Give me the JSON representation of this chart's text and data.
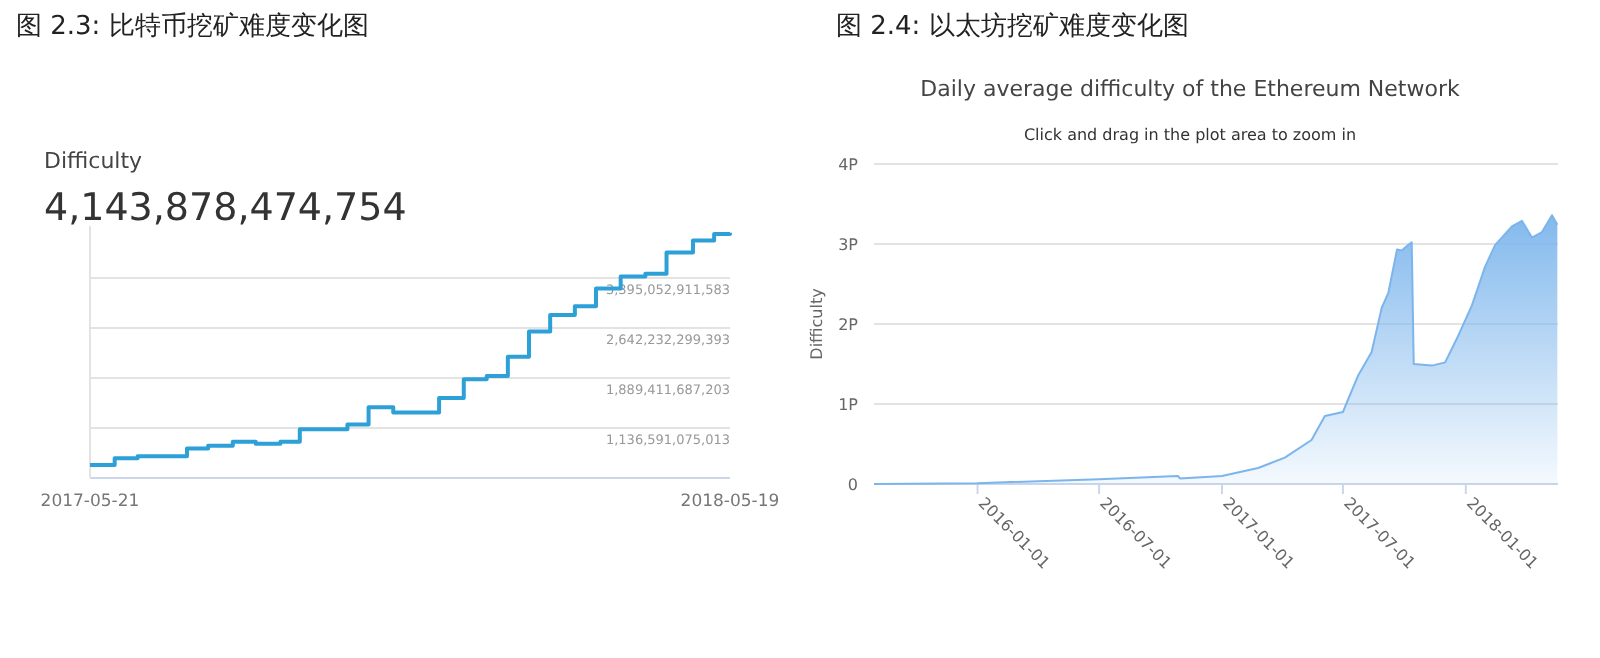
{
  "chart_data": [
    {
      "type": "step",
      "title": "图 2.3: 比特币挖矿难度变化图",
      "subtitle": "Difficulty",
      "annotations": [
        "4,143,878,474,754"
      ],
      "x": [
        "2017-05-21",
        "2017-06-04",
        "2017-06-17",
        "2017-07-15",
        "2017-07-27",
        "2017-08-10",
        "2017-08-23",
        "2017-09-06",
        "2017-09-17",
        "2017-10-14",
        "2017-10-26",
        "2017-11-09",
        "2017-12-05",
        "2017-12-19",
        "2018-01-01",
        "2018-01-13",
        "2018-01-25",
        "2018-02-06",
        "2018-02-20",
        "2018-03-04",
        "2018-03-18",
        "2018-04-01",
        "2018-04-13",
        "2018-04-28",
        "2018-05-10",
        "2018-05-19"
      ],
      "values": [
        580000000000,
        680000000000,
        710000000000,
        830000000000,
        870000000000,
        930000000000,
        900000000000,
        930000000000,
        1120000000000,
        1190000000000,
        1450000000000,
        1370000000000,
        1590000000000,
        1870000000000,
        1920000000000,
        2210000000000,
        2590000000000,
        2840000000000,
        2970000000000,
        3240000000000,
        3420000000000,
        3460000000000,
        3780000000000,
        3960000000000,
        4060000000000,
        4080000000000
      ],
      "color": "#2ea0d8",
      "xlim": [
        "2017-05-21",
        "2018-05-19"
      ],
      "xticks": [
        "2017-05-21",
        "2018-05-19"
      ],
      "ylim": [
        383770462823,
        4180000000000
      ],
      "yticks": [
        {
          "value": 1136591075013,
          "label": "1,136,591,075,013"
        },
        {
          "value": 1889411687203,
          "label": "1,889,411,687,203"
        },
        {
          "value": 2642232299393,
          "label": "2,642,232,299,393"
        },
        {
          "value": 3395052911583,
          "label": "3,395,052,911,583"
        }
      ],
      "grid": "y"
    },
    {
      "type": "area",
      "title": "图 2.4: 以太坊挖矿难度变化图",
      "subtitle": "Daily average difficulty of the Ethereum Network",
      "annotations": [
        "Click and drag in the plot area to zoom in"
      ],
      "ylabel": "Difficulty",
      "x": [
        "2015-07-30",
        "2016-01-01",
        "2016-07-01",
        "2016-10-27",
        "2016-10-30",
        "2017-01-01",
        "2017-02-24",
        "2017-04-05",
        "2017-05-15",
        "2017-06-04",
        "2017-07-01",
        "2017-07-24",
        "2017-08-13",
        "2017-08-28",
        "2017-09-07",
        "2017-09-20",
        "2017-09-27",
        "2017-10-07",
        "2017-10-12",
        "2017-10-15",
        "2017-11-11",
        "2017-12-01",
        "2017-12-21",
        "2018-01-10",
        "2018-01-30",
        "2018-02-14",
        "2018-03-11",
        "2018-03-26",
        "2018-04-10",
        "2018-04-25",
        "2018-05-10",
        "2018-05-18"
      ],
      "values": [
        0,
        0.01,
        0.06,
        0.1,
        0.07,
        0.1,
        0.2,
        0.33,
        0.55,
        0.85,
        0.9,
        1.36,
        1.65,
        2.2,
        2.39,
        2.93,
        2.92,
        2.99,
        3.02,
        1.5,
        1.48,
        1.52,
        1.86,
        2.23,
        2.72,
        2.99,
        3.22,
        3.29,
        3.08,
        3.15,
        3.36,
        3.24
      ],
      "color": "#7cb5ec",
      "xlim": [
        "2015-07-30",
        "2018-05-19"
      ],
      "xticks": [
        "2016-01-01",
        "2016-07-01",
        "2017-01-01",
        "2017-07-01",
        "2018-01-01"
      ],
      "ylim": [
        0,
        4
      ],
      "yticks": [
        0,
        {
          "value": 1,
          "label": "1P"
        },
        {
          "value": 2,
          "label": "2P"
        },
        {
          "value": 3,
          "label": "3P"
        },
        {
          "value": 4,
          "label": "4P"
        }
      ],
      "grid": "y"
    }
  ]
}
